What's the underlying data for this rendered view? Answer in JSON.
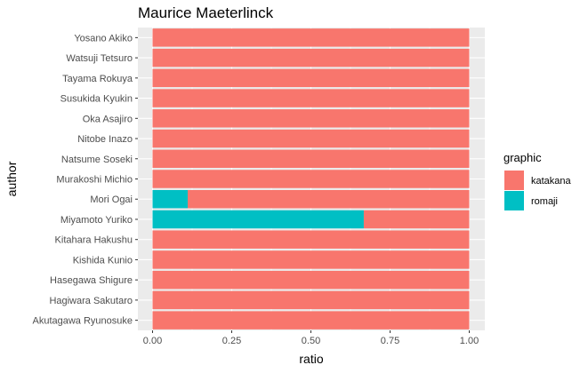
{
  "chart_data": {
    "type": "bar",
    "orientation": "horizontal",
    "stacked": true,
    "title": "Maurice Maeterlinck",
    "xlabel": "ratio",
    "ylabel": "author",
    "xlim": [
      0,
      1
    ],
    "x_ticks": [
      "0.00",
      "0.25",
      "0.50",
      "0.75",
      "1.00"
    ],
    "grid": true,
    "legend": {
      "title": "graphic",
      "position": "right"
    },
    "categories": [
      "Yosano Akiko",
      "Watsuji Tetsuro",
      "Tayama Rokuya",
      "Susukida Kyukin",
      "Oka Asajiro",
      "Nitobe Inazo",
      "Natsume Soseki",
      "Murakoshi Michio",
      "Mori Ogai",
      "Miyamoto Yuriko",
      "Kitahara Hakushu",
      "Kishida Kunio",
      "Hasegawa Shigure",
      "Hagiwara Sakutaro",
      "Akutagawa Ryunosuke"
    ],
    "series": [
      {
        "name": "romaji",
        "color": "#00BFC4",
        "values": [
          0,
          0,
          0,
          0,
          0,
          0,
          0,
          0,
          0.111,
          0.667,
          0,
          0,
          0,
          0,
          0
        ]
      },
      {
        "name": "katakana",
        "color": "#F8766D",
        "values": [
          1,
          1,
          1,
          1,
          1,
          1,
          1,
          1,
          0.889,
          0.333,
          1,
          1,
          1,
          1,
          1
        ]
      }
    ],
    "legend_order": [
      "katakana",
      "romaji"
    ]
  }
}
